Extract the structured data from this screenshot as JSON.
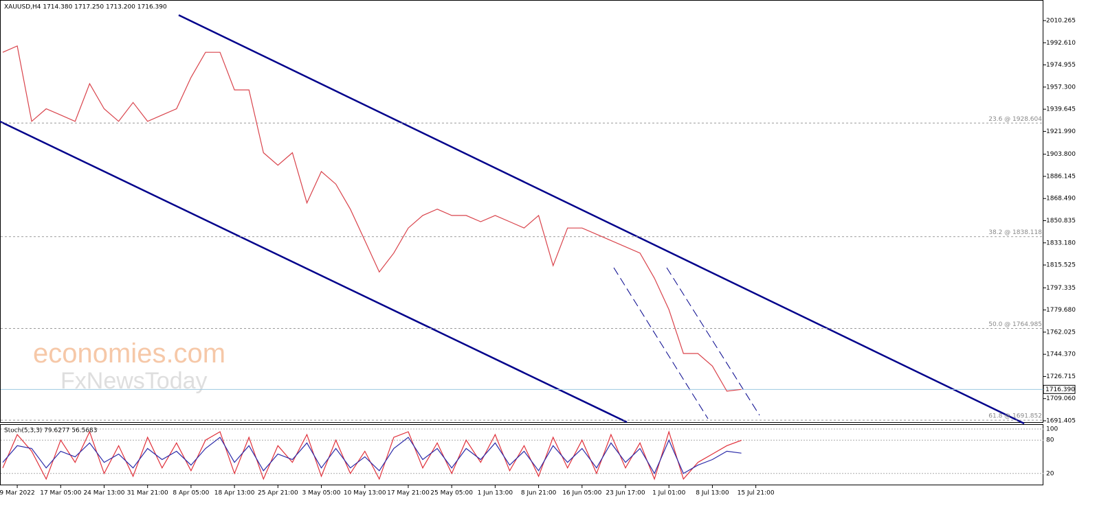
{
  "chart_data": {
    "type": "line",
    "title": "XAUUSD,H4  1714.380 1717.250 1713.200 1716.390",
    "indicator_label": "Stoch(5,3,3) 79.6277 56.5683",
    "watermark": [
      "economies.com",
      "FxNewsToday"
    ],
    "categories": [
      null,
      "9 Mar 2022",
      null,
      null,
      "17 Mar 05:00",
      null,
      null,
      "24 Mar 13:00",
      null,
      null,
      "31 Mar 21:00",
      null,
      null,
      "8 Apr 05:00",
      null,
      null,
      "18 Apr 13:00",
      null,
      null,
      "25 Apr 21:00",
      null,
      null,
      "3 May 05:00",
      null,
      null,
      "10 May 13:00",
      null,
      null,
      "17 May 21:00",
      null,
      null,
      "25 May 05:00",
      null,
      null,
      "1 Jun 13:00",
      null,
      null,
      "8 Jun 21:00",
      null,
      null,
      "16 Jun 05:00",
      null,
      null,
      "23 Jun 17:00",
      null,
      null,
      "1 Jul 01:00",
      null,
      null,
      "8 Jul 13:00",
      null,
      null,
      "15 Jul 21:00"
    ],
    "series": [
      {
        "name": "XAUUSD",
        "color": "#d9434b",
        "values": [
          1985,
          1990,
          1930,
          1940,
          1935,
          1930,
          1960,
          1940,
          1930,
          1945,
          1930,
          1935,
          1940,
          1965,
          1985,
          1985,
          1955,
          1955,
          1905,
          1895,
          1905,
          1865,
          1890,
          1880,
          1860,
          1835,
          1810,
          1825,
          1845,
          1855,
          1860,
          1855,
          1855,
          1850,
          1855,
          1850,
          1845,
          1855,
          1815,
          1845,
          1845,
          1840,
          1835,
          1830,
          1825,
          1805,
          1780,
          1745,
          1745,
          1735,
          1715,
          1716.39,
          null
        ]
      },
      {
        "name": "Stoch %K",
        "color": "#e0303a",
        "axis": "y2",
        "values": [
          30,
          90,
          60,
          10,
          80,
          40,
          95,
          20,
          70,
          15,
          85,
          30,
          75,
          25,
          80,
          95,
          20,
          85,
          10,
          70,
          40,
          90,
          15,
          80,
          20,
          60,
          10,
          85,
          95,
          30,
          75,
          20,
          80,
          40,
          90,
          25,
          70,
          15,
          85,
          30,
          80,
          20,
          90,
          30,
          75,
          10,
          95,
          10,
          40,
          55,
          70,
          79.6277,
          null
        ]
      },
      {
        "name": "Stoch %D",
        "color": "#2a2aa8",
        "axis": "y2",
        "values": [
          40,
          70,
          65,
          30,
          60,
          50,
          75,
          40,
          55,
          30,
          65,
          45,
          60,
          35,
          65,
          85,
          40,
          70,
          25,
          55,
          45,
          75,
          30,
          65,
          30,
          50,
          25,
          65,
          85,
          45,
          65,
          30,
          65,
          45,
          75,
          35,
          60,
          25,
          70,
          40,
          65,
          30,
          75,
          40,
          65,
          20,
          80,
          20,
          35,
          45,
          60,
          56.5683,
          null
        ]
      }
    ],
    "ylim": [
      1690.31,
      2026.67
    ],
    "yticks": [
      2010.265,
      {
        "value": 1992.61,
        "label": "1992.610"
      },
      1974.955,
      {
        "value": 1957.3,
        "label": "1957.300"
      },
      1939.645,
      {
        "value": 1921.99,
        "label": "1921.990"
      },
      {
        "value": 1903.8,
        "label": "1903.800"
      },
      1886.145,
      {
        "value": 1868.49,
        "label": "1868.490"
      },
      1850.835,
      {
        "value": 1833.18,
        "label": "1833.180"
      },
      1815.525,
      1797.335,
      {
        "value": 1779.68,
        "label": "1779.680"
      },
      1762.025,
      {
        "value": 1744.37,
        "label": "1744.370"
      },
      1726.715,
      {
        "value": 1709.06,
        "label": "1709.060"
      },
      1691.405
    ],
    "y2lim": [
      0,
      100
    ],
    "y2ticks": [
      100,
      80,
      20
    ],
    "last_price": {
      "value": 1716.39,
      "label": "1716.390"
    },
    "annotations": [
      {
        "value": 1928.604,
        "label": "23.6 @ 1928.604"
      },
      {
        "value": 1838.118,
        "label": "38.2 @ 1838.118"
      },
      {
        "value": 1764.985,
        "label": "50.0 @ 1764.985"
      },
      {
        "value": 1691.852,
        "label": "61.8 @ 1691.852"
      }
    ]
  }
}
